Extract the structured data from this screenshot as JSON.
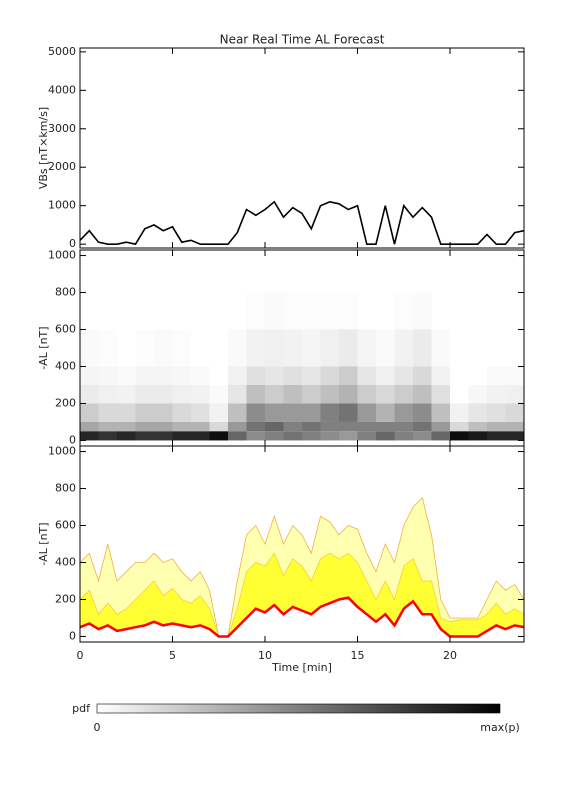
{
  "chart_data": [
    {
      "type": "line",
      "title": "Near Real Time AL Forecast",
      "ylabel": "VBs [nT×km/s]",
      "color": "#000000",
      "x": [
        0,
        0.5,
        1,
        1.5,
        2,
        2.5,
        3,
        3.5,
        4,
        4.5,
        5,
        5.5,
        6,
        6.5,
        7,
        7.5,
        8,
        8.5,
        9,
        9.5,
        10,
        10.5,
        11,
        11.5,
        12,
        12.5,
        13,
        13.5,
        14,
        14.5,
        15,
        15.5,
        16,
        16.5,
        17,
        17.5,
        18,
        18.5,
        19,
        19.5,
        20,
        20.5,
        21,
        21.5,
        22,
        22.5,
        23,
        23.5,
        24
      ],
      "values": [
        100,
        350,
        50,
        0,
        0,
        50,
        0,
        400,
        500,
        350,
        450,
        50,
        100,
        0,
        0,
        0,
        0,
        300,
        900,
        750,
        900,
        1100,
        700,
        950,
        800,
        400,
        1000,
        1100,
        1050,
        900,
        1000,
        0,
        0,
        1000,
        0,
        1000,
        700,
        950,
        700,
        0,
        0,
        0,
        0,
        0,
        250,
        0,
        0,
        300,
        350
      ],
      "xlim": [
        0,
        24
      ],
      "xticks": [
        0,
        5,
        10,
        15,
        20
      ],
      "ylim": [
        -100,
        5100
      ],
      "yticks": [
        0,
        1000,
        2000,
        3000,
        4000,
        5000
      ]
    },
    {
      "type": "heatmap",
      "ylabel": "-AL [nT]",
      "xbins": [
        0,
        1,
        2,
        3,
        4,
        5,
        6,
        7,
        8,
        9,
        10,
        11,
        12,
        13,
        14,
        15,
        16,
        17,
        18,
        19,
        20,
        21,
        22,
        23,
        24
      ],
      "ybins": [
        0,
        50,
        100,
        200,
        300,
        400,
        600,
        800
      ],
      "z": [
        [
          0.85,
          0.35,
          0.2,
          0.08,
          0.04,
          0.02,
          0
        ],
        [
          0.8,
          0.3,
          0.15,
          0.06,
          0.03,
          0.01,
          0
        ],
        [
          0.85,
          0.3,
          0.15,
          0.05,
          0.02,
          0,
          0
        ],
        [
          0.8,
          0.35,
          0.2,
          0.08,
          0.04,
          0.01,
          0
        ],
        [
          0.8,
          0.35,
          0.2,
          0.08,
          0.04,
          0.02,
          0
        ],
        [
          0.85,
          0.3,
          0.15,
          0.06,
          0.03,
          0.01,
          0
        ],
        [
          0.85,
          0.3,
          0.12,
          0.05,
          0.02,
          0,
          0
        ],
        [
          0.95,
          0.15,
          0.05,
          0.02,
          0,
          0,
          0
        ],
        [
          0.6,
          0.4,
          0.25,
          0.1,
          0.05,
          0.02,
          0
        ],
        [
          0.45,
          0.55,
          0.45,
          0.25,
          0.12,
          0.05,
          0.01
        ],
        [
          0.5,
          0.6,
          0.4,
          0.2,
          0.1,
          0.06,
          0.02
        ],
        [
          0.55,
          0.5,
          0.4,
          0.25,
          0.12,
          0.05,
          0.01
        ],
        [
          0.5,
          0.55,
          0.4,
          0.2,
          0.1,
          0.04,
          0.01
        ],
        [
          0.45,
          0.5,
          0.5,
          0.25,
          0.15,
          0.06,
          0.01
        ],
        [
          0.4,
          0.5,
          0.55,
          0.3,
          0.2,
          0.08,
          0.01
        ],
        [
          0.5,
          0.5,
          0.4,
          0.2,
          0.1,
          0.04,
          0
        ],
        [
          0.6,
          0.5,
          0.3,
          0.15,
          0.06,
          0.02,
          0
        ],
        [
          0.5,
          0.5,
          0.4,
          0.2,
          0.1,
          0.05,
          0.01
        ],
        [
          0.45,
          0.55,
          0.45,
          0.25,
          0.15,
          0.08,
          0.02
        ],
        [
          0.6,
          0.4,
          0.25,
          0.12,
          0.05,
          0.02,
          0
        ],
        [
          0.95,
          0.15,
          0.05,
          0,
          0,
          0,
          0
        ],
        [
          0.9,
          0.25,
          0.1,
          0.03,
          0,
          0,
          0
        ],
        [
          0.85,
          0.3,
          0.12,
          0.05,
          0.02,
          0,
          0
        ],
        [
          0.85,
          0.3,
          0.15,
          0.06,
          0.02,
          0,
          0
        ]
      ],
      "colorbar": {
        "label": "pdf",
        "min_label": "0",
        "max_label": "max(p)"
      },
      "xlim": [
        0,
        24
      ],
      "xticks": [
        0,
        5,
        10,
        15,
        20
      ],
      "ylim": [
        -30,
        1030
      ],
      "yticks": [
        0,
        200,
        400,
        600,
        800,
        1000
      ]
    },
    {
      "type": "area",
      "ylabel": "-AL [nT]",
      "xlabel": "Time [min]",
      "band_base": 2,
      "x": [
        0,
        0.5,
        1,
        1.5,
        2,
        2.5,
        3,
        3.5,
        4,
        4.5,
        5,
        5.5,
        6,
        6.5,
        7,
        7.5,
        8,
        8.5,
        9,
        9.5,
        10,
        10.5,
        11,
        11.5,
        12,
        12.5,
        13,
        13.5,
        14,
        14.5,
        15,
        15.5,
        16,
        16.5,
        17,
        17.5,
        18,
        18.5,
        19,
        19.5,
        20,
        20.5,
        21,
        21.5,
        22,
        22.5,
        23,
        23.5,
        24
      ],
      "series": [
        {
          "color": "#ffffb0",
          "line_color": "#f2b040",
          "values": [
            400,
            450,
            300,
            500,
            300,
            350,
            400,
            400,
            450,
            400,
            420,
            350,
            300,
            350,
            250,
            0,
            0,
            300,
            550,
            600,
            500,
            650,
            500,
            600,
            550,
            450,
            650,
            620,
            550,
            600,
            580,
            450,
            350,
            500,
            400,
            600,
            700,
            750,
            550,
            200,
            100,
            100,
            100,
            100,
            200,
            300,
            250,
            280,
            200
          ]
        },
        {
          "color": "#ffff33",
          "line_color": "#f2d040",
          "values": [
            200,
            250,
            120,
            180,
            120,
            150,
            200,
            250,
            300,
            220,
            260,
            200,
            180,
            220,
            150,
            0,
            0,
            150,
            350,
            400,
            380,
            450,
            330,
            420,
            380,
            300,
            420,
            450,
            420,
            450,
            400,
            300,
            200,
            300,
            200,
            380,
            420,
            300,
            300,
            100,
            80,
            90,
            90,
            90,
            120,
            180,
            120,
            150,
            120
          ]
        },
        {
          "color": "#ff0000",
          "values": [
            50,
            70,
            40,
            60,
            30,
            40,
            50,
            60,
            80,
            60,
            70,
            60,
            50,
            60,
            40,
            0,
            0,
            50,
            100,
            150,
            130,
            170,
            120,
            160,
            140,
            120,
            160,
            180,
            200,
            210,
            160,
            120,
            80,
            120,
            60,
            150,
            190,
            120,
            120,
            40,
            0,
            0,
            0,
            0,
            30,
            60,
            40,
            60,
            50
          ]
        }
      ],
      "xlim": [
        0,
        24
      ],
      "xticks": [
        0,
        5,
        10,
        15,
        20
      ],
      "ylim": [
        -30,
        1030
      ],
      "yticks": [
        0,
        200,
        400,
        600,
        800,
        1000
      ]
    }
  ]
}
